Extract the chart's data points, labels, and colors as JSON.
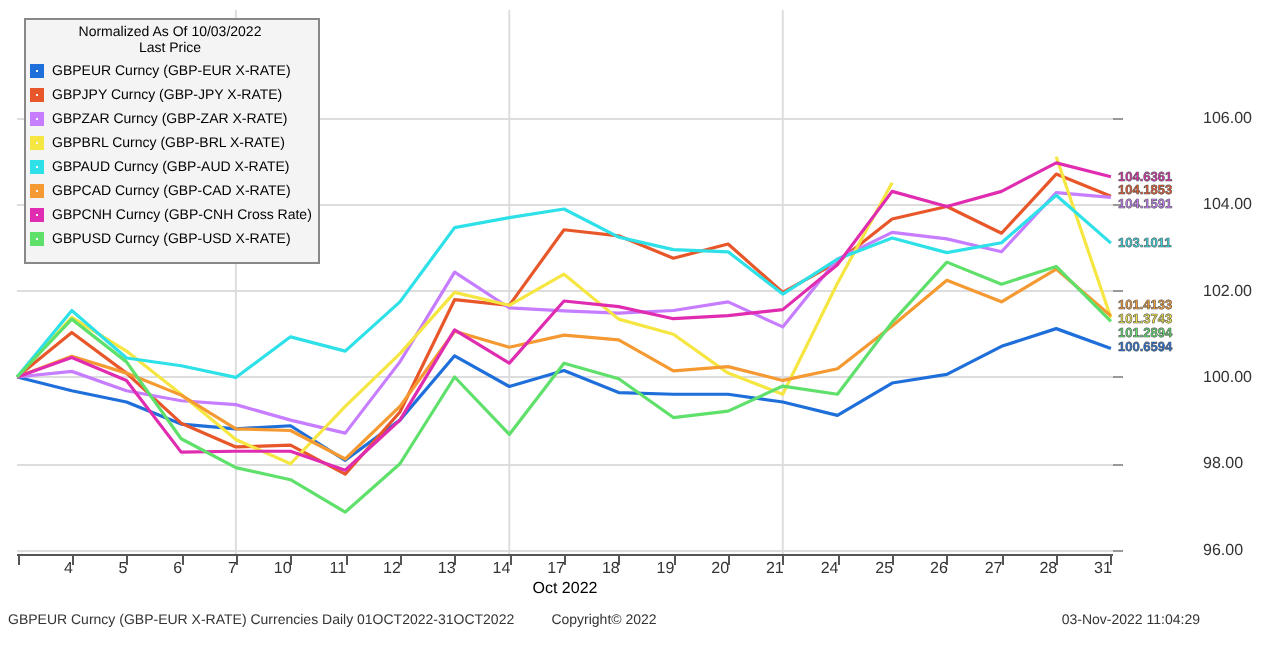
{
  "chart_data": {
    "type": "line",
    "xlabel": "Oct 2022",
    "legend_title": "Normalized As Of 10/03/2022\nLast Price",
    "categories": [
      null,
      "4",
      "5",
      "6",
      "7",
      "10",
      "11",
      "12",
      "13",
      "14",
      "17",
      "18",
      "19",
      "20",
      "21",
      "24",
      "25",
      "26",
      "27",
      "28",
      "31"
    ],
    "series": [
      {
        "name": "GBPEUR Curncy (GBP-EUR X-RATE)",
        "color": "#1f6fdb",
        "values": [
          100,
          99.68,
          99.42,
          98.91,
          98.8,
          98.87,
          98.07,
          99.0,
          100.49,
          99.78,
          100.15,
          99.64,
          99.6,
          99.6,
          99.42,
          99.11,
          99.86,
          100.06,
          100.71,
          101.12,
          100.6594
        ],
        "value_labels": [
          null,
          null,
          null,
          null,
          null,
          null,
          null,
          null,
          null,
          null,
          null,
          null,
          null,
          null,
          null,
          null,
          null,
          null,
          null,
          null,
          "100.6594"
        ]
      },
      {
        "name": "GBPJPY Curncy (GBP-JPY X-RATE)",
        "color": "#e8572a",
        "values": [
          100,
          101.03,
          100.09,
          98.93,
          98.38,
          98.42,
          97.75,
          99.19,
          101.79,
          101.66,
          103.41,
          103.27,
          102.75,
          103.08,
          101.96,
          102.66,
          103.66,
          103.95,
          103.33,
          104.7,
          104.1853
        ],
        "value_labels": [
          null,
          null,
          null,
          null,
          null,
          null,
          null,
          null,
          null,
          null,
          null,
          null,
          null,
          null,
          null,
          null,
          null,
          null,
          null,
          null,
          "104.1853"
        ]
      },
      {
        "name": "GBPZAR Curncy (GBP-ZAR X-RATE)",
        "color": "#c77dff",
        "values": [
          100,
          100.13,
          99.68,
          99.45,
          99.36,
          99.0,
          98.7,
          100.35,
          102.43,
          101.6,
          101.53,
          101.48,
          101.54,
          101.74,
          101.16,
          102.73,
          103.35,
          103.2,
          102.9,
          104.27,
          104.1591
        ],
        "value_labels": [
          null,
          null,
          null,
          null,
          null,
          null,
          null,
          null,
          null,
          null,
          null,
          null,
          null,
          null,
          null,
          null,
          null,
          null,
          null,
          null,
          "104.1591"
        ]
      },
      {
        "name": "GBPBRL Curncy (GBP-BRL X-RATE)",
        "color": "#f5e642",
        "values": [
          100,
          101.38,
          100.6,
          99.6,
          98.55,
          97.99,
          99.32,
          100.54,
          101.96,
          101.66,
          102.38,
          101.34,
          100.99,
          100.09,
          99.6,
          102.17,
          104.5,
          null,
          null,
          105.1,
          101.3743
        ],
        "value_labels": [
          null,
          null,
          null,
          null,
          null,
          null,
          null,
          null,
          null,
          null,
          null,
          null,
          null,
          null,
          null,
          null,
          null,
          null,
          null,
          null,
          "101.3743"
        ]
      },
      {
        "name": "GBPAUD Curncy (GBP-AUD X-RATE)",
        "color": "#2ee0e8",
        "values": [
          100,
          101.54,
          100.44,
          100.26,
          99.99,
          100.93,
          100.6,
          101.74,
          103.46,
          103.69,
          103.89,
          103.24,
          102.95,
          102.9,
          101.92,
          102.73,
          103.22,
          102.88,
          103.11,
          104.21,
          103.1011
        ],
        "value_labels": [
          null,
          null,
          null,
          null,
          null,
          null,
          null,
          null,
          null,
          null,
          null,
          null,
          null,
          null,
          null,
          null,
          null,
          null,
          null,
          null,
          "103.1011"
        ]
      },
      {
        "name": "GBPCAD Curncy (GBP-CAD X-RATE)",
        "color": "#f59a32",
        "values": [
          100,
          100.48,
          100.09,
          99.58,
          98.8,
          98.76,
          98.1,
          99.32,
          101.06,
          100.69,
          100.97,
          100.86,
          100.14,
          100.24,
          99.92,
          100.19,
          101.18,
          102.24,
          101.74,
          102.5,
          101.4133
        ],
        "value_labels": [
          null,
          null,
          null,
          null,
          null,
          null,
          null,
          null,
          null,
          null,
          null,
          null,
          null,
          null,
          null,
          null,
          null,
          null,
          null,
          null,
          "101.4133"
        ]
      },
      {
        "name": "GBPCNH Curncy (GBP-CNH Cross Rate)",
        "color": "#e02cb0",
        "values": [
          100,
          100.45,
          99.92,
          98.26,
          98.28,
          98.28,
          97.84,
          99.0,
          101.09,
          100.32,
          101.76,
          101.63,
          101.35,
          101.42,
          101.56,
          102.6,
          104.3,
          103.95,
          104.3,
          104.96,
          104.6361
        ],
        "value_labels": [
          null,
          null,
          null,
          null,
          null,
          null,
          null,
          null,
          null,
          null,
          null,
          null,
          null,
          null,
          null,
          null,
          null,
          null,
          null,
          null,
          "104.6361"
        ]
      },
      {
        "name": "GBPUSD Curncy (GBP-USD X-RATE)",
        "color": "#5ee06a",
        "values": [
          100,
          101.34,
          100.35,
          98.57,
          97.9,
          97.62,
          96.87,
          97.99,
          100,
          98.67,
          100.32,
          99.96,
          99.06,
          99.21,
          99.79,
          99.6,
          101.27,
          102.66,
          102.15,
          102.56,
          101.2894
        ],
        "value_labels": [
          null,
          null,
          null,
          null,
          null,
          null,
          null,
          null,
          null,
          null,
          null,
          null,
          null,
          null,
          null,
          null,
          null,
          null,
          null,
          null,
          "101.2894"
        ]
      }
    ],
    "ylim": [
      95.9,
      108.5
    ],
    "yticks": [
      {
        "value": 96,
        "label": "96.00"
      },
      {
        "value": 98,
        "label": "98.00"
      },
      {
        "value": 100,
        "label": "100.00"
      },
      {
        "value": 102,
        "label": "102.00"
      },
      {
        "value": 104,
        "label": "104.00"
      },
      {
        "value": 106,
        "label": "106.00"
      }
    ],
    "grid": "y",
    "legend": "top left",
    "ref_lines": [
      {
        "axis": "x",
        "value": "7",
        "color": "#dddddd"
      },
      {
        "axis": "x",
        "value": "14",
        "color": "#dddddd"
      },
      {
        "axis": "x",
        "value": "21",
        "color": "#dddddd"
      }
    ],
    "annotations": [
      "GBPEUR Curncy (GBP-EUR X-RATE) Currencies  Daily 01OCT2022-31OCT2022",
      "Copyright© 2022",
      "03-Nov-2022 11:04:29"
    ]
  }
}
